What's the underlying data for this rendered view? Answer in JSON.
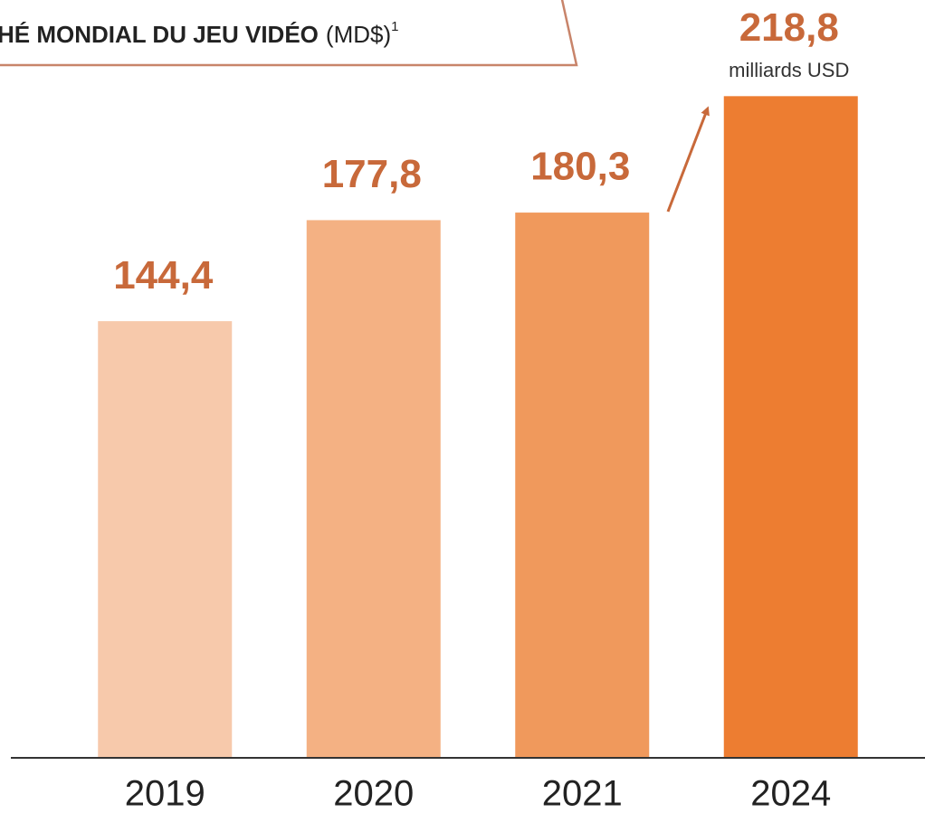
{
  "chart_data": {
    "type": "bar",
    "title": "HÉ MONDIAL DU JEU VIDÉO",
    "title_unit": "(MD$)",
    "title_footnote": "1",
    "categories": [
      "2019",
      "2020",
      "2021",
      "2024"
    ],
    "values": [
      144.4,
      177.8,
      180.3,
      218.8
    ],
    "value_labels": [
      "144,4",
      "177,8",
      "180,3",
      "218,8"
    ],
    "annotation": "milliards USD",
    "colors": [
      "#f7c9ab",
      "#f4b183",
      "#f0995c",
      "#ed7d31"
    ],
    "ylim": [
      0,
      250
    ]
  }
}
